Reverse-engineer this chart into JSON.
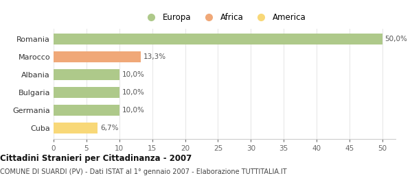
{
  "categories": [
    "Romania",
    "Marocco",
    "Albania",
    "Bulgaria",
    "Germania",
    "Cuba"
  ],
  "values": [
    50.0,
    13.3,
    10.0,
    10.0,
    10.0,
    6.7
  ],
  "labels": [
    "50,0%",
    "13,3%",
    "10,0%",
    "10,0%",
    "10,0%",
    "6,7%"
  ],
  "bar_colors": [
    "#aec98a",
    "#f0a878",
    "#aec98a",
    "#aec98a",
    "#aec98a",
    "#f8d878"
  ],
  "legend_labels": [
    "Europa",
    "Africa",
    "America"
  ],
  "legend_colors": [
    "#aec98a",
    "#f0a878",
    "#f8d878"
  ],
  "xlim": [
    0,
    52
  ],
  "xticks": [
    0,
    5,
    10,
    15,
    20,
    25,
    30,
    35,
    40,
    45,
    50
  ],
  "title": "Cittadini Stranieri per Cittadinanza - 2007",
  "subtitle": "COMUNE DI SUARDI (PV) - Dati ISTAT al 1° gennaio 2007 - Elaborazione TUTTITALIA.IT",
  "background_color": "#ffffff",
  "grid_color": "#e8e8e8"
}
